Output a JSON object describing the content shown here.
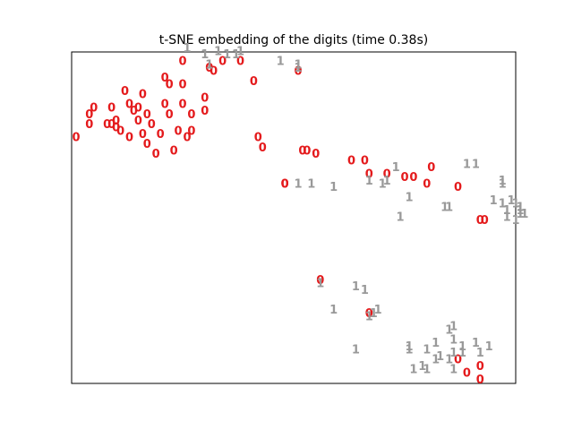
{
  "figure": {
    "title": "t-SNE embedding of the digits (time 0.38s)"
  },
  "chart_data": {
    "type": "scatter",
    "title": "t-SNE embedding of the digits (time 0.38s)",
    "xlabel": "",
    "ylabel": "",
    "xlim": [
      0,
      1
    ],
    "ylim": [
      0,
      1
    ],
    "axes_ticks": "none",
    "grid": false,
    "series": [
      {
        "label": "0",
        "color": "#e41a1c",
        "points": [
          [
            0.01,
            0.74
          ],
          [
            0.04,
            0.78
          ],
          [
            0.04,
            0.81
          ],
          [
            0.05,
            0.83
          ],
          [
            0.08,
            0.78
          ],
          [
            0.09,
            0.78
          ],
          [
            0.09,
            0.83
          ],
          [
            0.1,
            0.79
          ],
          [
            0.1,
            0.77
          ],
          [
            0.11,
            0.76
          ],
          [
            0.12,
            0.88
          ],
          [
            0.13,
            0.84
          ],
          [
            0.13,
            0.74
          ],
          [
            0.14,
            0.82
          ],
          [
            0.15,
            0.83
          ],
          [
            0.15,
            0.79
          ],
          [
            0.16,
            0.87
          ],
          [
            0.16,
            0.75
          ],
          [
            0.17,
            0.72
          ],
          [
            0.17,
            0.81
          ],
          [
            0.18,
            0.78
          ],
          [
            0.19,
            0.69
          ],
          [
            0.2,
            0.75
          ],
          [
            0.21,
            0.84
          ],
          [
            0.21,
            0.92
          ],
          [
            0.22,
            0.9
          ],
          [
            0.22,
            0.81
          ],
          [
            0.23,
            0.7
          ],
          [
            0.24,
            0.76
          ],
          [
            0.25,
            0.84
          ],
          [
            0.25,
            0.9
          ],
          [
            0.25,
            0.97
          ],
          [
            0.26,
            0.74
          ],
          [
            0.27,
            0.81
          ],
          [
            0.27,
            0.76
          ],
          [
            0.3,
            0.82
          ],
          [
            0.3,
            0.86
          ],
          [
            0.31,
            0.95
          ],
          [
            0.32,
            0.94
          ],
          [
            0.34,
            0.97
          ],
          [
            0.38,
            0.97
          ],
          [
            0.41,
            0.91
          ],
          [
            0.42,
            0.74
          ],
          [
            0.43,
            0.71
          ],
          [
            0.48,
            0.6
          ],
          [
            0.48,
            0.6
          ],
          [
            0.51,
            0.94
          ],
          [
            0.52,
            0.7
          ],
          [
            0.53,
            0.7
          ],
          [
            0.55,
            0.69
          ],
          [
            0.56,
            0.31
          ],
          [
            0.63,
            0.67
          ],
          [
            0.66,
            0.67
          ],
          [
            0.67,
            0.63
          ],
          [
            0.67,
            0.21
          ],
          [
            0.71,
            0.63
          ],
          [
            0.75,
            0.62
          ],
          [
            0.77,
            0.62
          ],
          [
            0.8,
            0.6
          ],
          [
            0.81,
            0.65
          ],
          [
            0.87,
            0.59
          ],
          [
            0.87,
            0.07
          ],
          [
            0.89,
            0.03
          ],
          [
            0.92,
            0.49
          ],
          [
            0.92,
            0.05
          ],
          [
            0.92,
            0.01
          ],
          [
            0.93,
            0.49
          ]
        ]
      },
      {
        "label": "1",
        "color": "#999999",
        "points": [
          [
            0.26,
            1.01
          ],
          [
            0.3,
            0.99
          ],
          [
            0.31,
            0.96
          ],
          [
            0.33,
            1.0
          ],
          [
            0.35,
            0.99
          ],
          [
            0.37,
            0.99
          ],
          [
            0.38,
            1.0
          ],
          [
            0.47,
            0.97
          ],
          [
            0.51,
            0.95
          ],
          [
            0.51,
            0.96
          ],
          [
            0.51,
            0.6
          ],
          [
            0.54,
            0.6
          ],
          [
            0.59,
            0.59
          ],
          [
            0.64,
            0.29
          ],
          [
            0.66,
            0.28
          ],
          [
            0.67,
            0.61
          ],
          [
            0.68,
            0.21
          ],
          [
            0.69,
            0.22
          ],
          [
            0.7,
            0.6
          ],
          [
            0.59,
            0.22
          ],
          [
            0.56,
            0.3
          ],
          [
            0.73,
            0.65
          ],
          [
            0.76,
            0.56
          ],
          [
            0.76,
            0.1
          ],
          [
            0.77,
            0.04
          ],
          [
            0.79,
            0.05
          ],
          [
            0.8,
            0.04
          ],
          [
            0.8,
            0.1
          ],
          [
            0.82,
            0.12
          ],
          [
            0.82,
            0.07
          ],
          [
            0.83,
            0.08
          ],
          [
            0.84,
            0.53
          ],
          [
            0.85,
            0.53
          ],
          [
            0.85,
            0.07
          ],
          [
            0.85,
            0.16
          ],
          [
            0.86,
            0.17
          ],
          [
            0.86,
            0.04
          ],
          [
            0.86,
            0.13
          ],
          [
            0.86,
            0.09
          ],
          [
            0.88,
            0.11
          ],
          [
            0.88,
            0.09
          ],
          [
            0.89,
            0.66
          ],
          [
            0.91,
            0.66
          ],
          [
            0.91,
            0.12
          ],
          [
            0.92,
            0.09
          ],
          [
            0.94,
            0.11
          ],
          [
            0.95,
            0.55
          ],
          [
            0.97,
            0.61
          ],
          [
            0.97,
            0.6
          ],
          [
            0.97,
            0.54
          ],
          [
            0.98,
            0.52
          ],
          [
            0.98,
            0.5
          ],
          [
            0.99,
            0.55
          ],
          [
            1.0,
            0.49
          ],
          [
            1.0,
            0.54
          ],
          [
            1.01,
            0.52
          ],
          [
            1.01,
            0.53
          ],
          [
            1.01,
            0.51
          ],
          [
            1.02,
            0.51
          ],
          [
            0.71,
            0.61
          ],
          [
            0.67,
            0.2
          ],
          [
            0.64,
            0.1
          ],
          [
            0.74,
            0.5
          ],
          [
            0.76,
            0.11
          ]
        ]
      }
    ]
  }
}
